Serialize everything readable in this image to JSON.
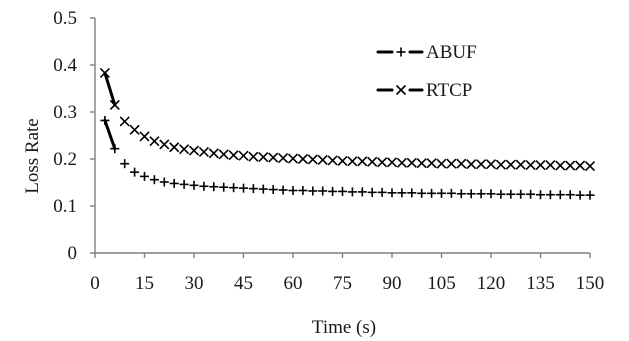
{
  "chart_data": {
    "type": "line",
    "title": "",
    "xlabel": "Time (s)",
    "ylabel": "Loss Rate",
    "xlim": [
      0,
      150
    ],
    "ylim": [
      0,
      0.5
    ],
    "x_ticks": [
      0,
      15,
      30,
      45,
      60,
      75,
      90,
      105,
      120,
      135,
      150
    ],
    "y_ticks": [
      0,
      0.1,
      0.2,
      0.3,
      0.4,
      0.5
    ],
    "y_tick_labels": [
      "0",
      "0.1",
      "0.2",
      "0.3",
      "0.4",
      "0.5"
    ],
    "grid": false,
    "legend_position": "top-right",
    "x": [
      3,
      6,
      9,
      12,
      15,
      18,
      21,
      24,
      27,
      30,
      33,
      36,
      39,
      42,
      45,
      48,
      51,
      54,
      57,
      60,
      63,
      66,
      69,
      72,
      75,
      78,
      81,
      84,
      87,
      90,
      93,
      96,
      99,
      102,
      105,
      108,
      111,
      114,
      117,
      120,
      123,
      126,
      129,
      132,
      135,
      138,
      141,
      144,
      147,
      150
    ],
    "series": [
      {
        "name": "ABUF",
        "marker": "plus",
        "color": "#000000",
        "values": [
          0.282,
          0.222,
          0.19,
          0.172,
          0.163,
          0.156,
          0.151,
          0.148,
          0.146,
          0.144,
          0.142,
          0.141,
          0.14,
          0.139,
          0.138,
          0.137,
          0.136,
          0.135,
          0.134,
          0.133,
          0.133,
          0.132,
          0.132,
          0.131,
          0.131,
          0.13,
          0.13,
          0.129,
          0.129,
          0.128,
          0.128,
          0.128,
          0.127,
          0.127,
          0.127,
          0.127,
          0.126,
          0.126,
          0.126,
          0.126,
          0.125,
          0.125,
          0.125,
          0.125,
          0.124,
          0.124,
          0.124,
          0.124,
          0.123,
          0.123
        ]
      },
      {
        "name": "RTCP",
        "marker": "x",
        "color": "#000000",
        "values": [
          0.383,
          0.315,
          0.28,
          0.262,
          0.248,
          0.238,
          0.231,
          0.225,
          0.221,
          0.218,
          0.215,
          0.212,
          0.21,
          0.208,
          0.207,
          0.205,
          0.204,
          0.203,
          0.202,
          0.201,
          0.2,
          0.199,
          0.198,
          0.197,
          0.196,
          0.195,
          0.195,
          0.194,
          0.193,
          0.193,
          0.192,
          0.192,
          0.191,
          0.191,
          0.19,
          0.19,
          0.19,
          0.189,
          0.189,
          0.189,
          0.188,
          0.188,
          0.188,
          0.187,
          0.187,
          0.187,
          0.186,
          0.186,
          0.186,
          0.185
        ]
      }
    ]
  }
}
